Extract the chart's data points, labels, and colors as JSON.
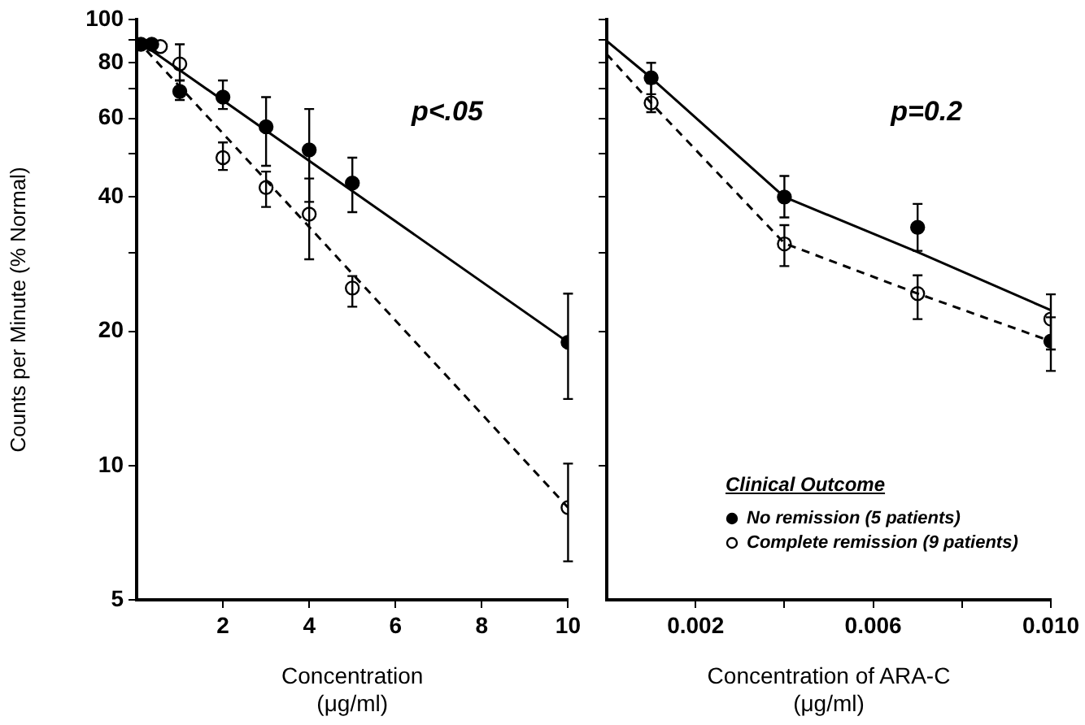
{
  "chart_data": [
    {
      "type": "scatter",
      "xlabel": "Concentration (μg/ml)",
      "ylabel": "Counts per Minute (% Normal)",
      "annotations": [
        "p<.05"
      ],
      "xlim": [
        0,
        10
      ],
      "xticks": [
        2,
        4,
        6,
        8,
        10
      ],
      "ylim": [
        5,
        100
      ],
      "yticks": [
        5,
        10,
        20,
        {
          "value": 30,
          "label": null
        },
        40,
        {
          "value": 50,
          "label": null
        },
        60,
        {
          "value": 70,
          "label": null
        },
        80,
        {
          "value": 90,
          "label": null
        },
        100
      ],
      "log": "y",
      "grid": false,
      "legend": false,
      "series": [
        {
          "type": "line",
          "color": "#000000",
          "x": [
            0,
            10
          ],
          "values": [
            90,
            18.9
          ],
          "marker": "none",
          "line_style": "solid"
        },
        {
          "type": "line",
          "color": "#000000",
          "x": [
            0,
            10
          ],
          "values": [
            90,
            8.05
          ],
          "marker": "none",
          "line_style": "dashed"
        },
        {
          "type": "scatter",
          "color": "#000000",
          "marker": "circle",
          "x": [
            0.1,
            0.35,
            1,
            2,
            3,
            4,
            5,
            10
          ],
          "values": [
            88,
            88,
            69,
            67,
            57.5,
            51,
            43,
            18.9
          ],
          "errors": [
            null,
            null,
            [
              66,
              73
            ],
            [
              63,
              73
            ],
            [
              47,
              67
            ],
            [
              39,
              63
            ],
            [
              37,
              49
            ],
            [
              14.1,
              24.3
            ]
          ]
        },
        {
          "type": "scatter",
          "color": "#ffffff",
          "marker": "circle",
          "x": [
            0.55,
            1,
            2,
            3,
            4,
            5,
            10
          ],
          "values": [
            87,
            79.5,
            49,
            42,
            36.6,
            25,
            8.05
          ],
          "errors": [
            null,
            [
              73,
              88
            ],
            [
              46,
              53
            ],
            [
              38,
              45.6
            ],
            [
              29,
              44
            ],
            [
              22.7,
              26.6
            ],
            [
              6.1,
              10.1
            ]
          ]
        }
      ]
    },
    {
      "type": "scatter",
      "xlabel": "Concentration of ARA-C (μg/ml)",
      "annotations": [
        "p=0.2"
      ],
      "legend_title": "Clinical Outcome",
      "legend": "bottom right",
      "tick_labels": "x",
      "xlim": [
        0,
        0.01
      ],
      "xticks": [
        0.002,
        {
          "value": 0.004,
          "label": null
        },
        0.006,
        {
          "value": 0.008,
          "label": null
        },
        {
          "value": 0.01,
          "label": "0.010"
        }
      ],
      "ylim": [
        5,
        100
      ],
      "yticks": [
        {
          "value": 10,
          "label": null
        },
        {
          "value": 20,
          "label": null
        },
        {
          "value": 30,
          "label": null
        },
        {
          "value": 40,
          "label": null
        },
        {
          "value": 50,
          "label": null
        },
        {
          "value": 60,
          "label": null
        },
        {
          "value": 70,
          "label": null
        },
        {
          "value": 80,
          "label": null
        },
        {
          "value": 90,
          "label": null
        },
        {
          "value": 100,
          "label": null
        }
      ],
      "log": "y",
      "grid": false,
      "series": [
        {
          "type": "line",
          "color": "#000000",
          "x": [
            0,
            0.001,
            0.004,
            0.007,
            0.01
          ],
          "values": [
            89.5,
            74,
            40,
            30.1,
            22.3
          ],
          "marker": "none",
          "line_style": "solid"
        },
        {
          "type": "line",
          "color": "#000000",
          "x": [
            0,
            0.001,
            0.004,
            0.007,
            0.01
          ],
          "values": [
            83.6,
            65,
            31.5,
            24.3,
            19
          ],
          "marker": "none",
          "line_style": "dashed"
        },
        {
          "type": "scatter",
          "name": "No remission (5 patients)",
          "color": "#000000",
          "marker": "circle",
          "x": [
            0.001,
            0.004,
            0.007,
            0.01
          ],
          "values": [
            74,
            40,
            34.2,
            19
          ],
          "errors": [
            [
              68,
              80
            ],
            [
              36,
              44.6
            ],
            [
              30.3,
              38.6
            ],
            [
              16.3,
              21.5
            ]
          ]
        },
        {
          "type": "scatter",
          "name": "Complete remission (9 patients)",
          "color": "#ffffff",
          "marker": "circle",
          "x": [
            0.001,
            0.004,
            0.007,
            0.01
          ],
          "values": [
            65,
            31.4,
            24.3,
            21.3
          ],
          "errors": [
            [
              62,
              72
            ],
            [
              28,
              34.6
            ],
            [
              21.3,
              26.7
            ],
            [
              18.2,
              24.2
            ]
          ]
        }
      ]
    }
  ]
}
